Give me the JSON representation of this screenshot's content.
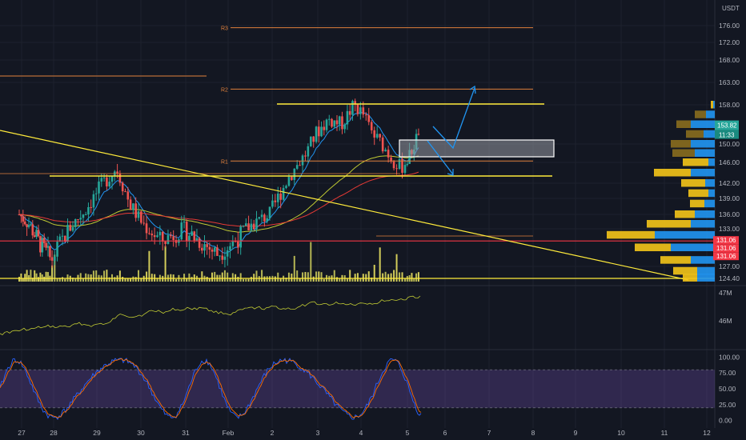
{
  "header": {
    "currency": "USDT"
  },
  "chart_data": [
    {
      "type": "candlestick",
      "title": "",
      "x_axis_labels": [
        "27",
        "28",
        "29",
        "30",
        "31",
        "Feb",
        "2",
        "3",
        "4",
        "5",
        "6",
        "7",
        "8",
        "9",
        "10",
        "11",
        "12"
      ],
      "y_ticks": [
        124.4,
        127.0,
        131.06,
        133.0,
        136.0,
        139.0,
        142.0,
        146.0,
        150.0,
        153.82,
        158.0,
        163.0,
        168.0,
        172.0,
        176.0
      ],
      "y_tick_labels": [
        "124.40",
        "127.00",
        "133.00",
        "136.00",
        "139.00",
        "142.00",
        "146.00",
        "150.00",
        "158.00",
        "163.00",
        "168.00",
        "172.00",
        "176.00"
      ],
      "ylim": [
        123.5,
        178
      ],
      "price_path": [
        {
          "t": 0,
          "p": 136
        },
        {
          "t": 0.3,
          "p": 134
        },
        {
          "t": 0.6,
          "p": 131
        },
        {
          "t": 1.0,
          "p": 128
        },
        {
          "t": 1.4,
          "p": 133
        },
        {
          "t": 1.8,
          "p": 137
        },
        {
          "t": 2.2,
          "p": 142
        },
        {
          "t": 2.5,
          "p": 145
        },
        {
          "t": 2.8,
          "p": 138
        },
        {
          "t": 3.1,
          "p": 134
        },
        {
          "t": 3.5,
          "p": 131
        },
        {
          "t": 4.0,
          "p": 133
        },
        {
          "t": 4.4,
          "p": 131
        },
        {
          "t": 4.8,
          "p": 129
        },
        {
          "t": 5.2,
          "p": 131
        },
        {
          "t": 5.6,
          "p": 134
        },
        {
          "t": 6.0,
          "p": 136
        },
        {
          "t": 6.4,
          "p": 143
        },
        {
          "t": 6.8,
          "p": 148
        },
        {
          "t": 7.0,
          "p": 152
        },
        {
          "t": 7.3,
          "p": 155
        },
        {
          "t": 7.6,
          "p": 154
        },
        {
          "t": 7.9,
          "p": 158
        },
        {
          "t": 8.1,
          "p": 156
        },
        {
          "t": 8.3,
          "p": 152
        },
        {
          "t": 8.5,
          "p": 150
        },
        {
          "t": 8.7,
          "p": 147
        },
        {
          "t": 8.9,
          "p": 145
        },
        {
          "t": 9.1,
          "p": 147
        },
        {
          "t": 9.3,
          "p": 151
        },
        {
          "t": 9.4,
          "p": 153.82
        }
      ],
      "current_price": "153.82",
      "countdown": "11:33",
      "red_line_label": "131.06",
      "red_level_labels": [
        "131.06",
        "131.06",
        "131.06"
      ],
      "pivot_levels": [
        {
          "label": "R3",
          "value": 175.5
        },
        {
          "label": "R2",
          "value": 161.5
        },
        {
          "label": "R1",
          "value": 146.3
        }
      ],
      "volume_profile": [
        {
          "price": 158,
          "buy": 3,
          "sell": 2
        },
        {
          "price": 156,
          "buy": 14,
          "sell": 11
        },
        {
          "price": 154,
          "buy": 18,
          "sell": 30
        },
        {
          "price": 152,
          "buy": 22,
          "sell": 14
        },
        {
          "price": 150,
          "buy": 25,
          "sell": 30
        },
        {
          "price": 148,
          "buy": 28,
          "sell": 25
        },
        {
          "price": 146,
          "buy": 32,
          "sell": 8
        },
        {
          "price": 144,
          "buy": 46,
          "sell": 30
        },
        {
          "price": 142,
          "buy": 30,
          "sell": 12
        },
        {
          "price": 140,
          "buy": 25,
          "sell": 8
        },
        {
          "price": 138,
          "buy": 18,
          "sell": 13
        },
        {
          "price": 136,
          "buy": 25,
          "sell": 25
        },
        {
          "price": 134,
          "buy": 55,
          "sell": 30
        },
        {
          "price": 132,
          "buy": 60,
          "sell": 75
        },
        {
          "price": 130,
          "buy": 45,
          "sell": 55
        },
        {
          "price": 128,
          "buy": 38,
          "sell": 30
        },
        {
          "price": 126,
          "buy": 30,
          "sell": 22
        },
        {
          "price": 124.5,
          "buy": 18,
          "sell": 22
        }
      ]
    },
    {
      "type": "line",
      "title": "",
      "y_tick_labels": [
        "47M",
        "46M"
      ]
    },
    {
      "type": "line",
      "title": "",
      "y_ticks": [
        0,
        25,
        50,
        75,
        100
      ],
      "y_tick_labels": [
        "0.00",
        "25.00",
        "50.00",
        "75.00",
        "100.00"
      ],
      "ylim": [
        -8,
        108
      ],
      "band": [
        20,
        80
      ]
    }
  ],
  "colors": {
    "background": "#131722",
    "up": "#26a69a",
    "down": "#ef5350",
    "trendline": "#ffeb3b",
    "pivot": "#e0803c",
    "red_level": "#f23645",
    "arrow": "#2196f3",
    "profile_buy": "#2196f3",
    "profile_sell": "#f5c518",
    "profile_sell_dim": "#8a6d1e",
    "stoch_k": "#2962ff",
    "stoch_d": "#ff6d00",
    "stoch_band": "#7e57c2",
    "ema_fast": "#2196f3",
    "ema_mid": "#c0ca33",
    "ema_slow": "#e53935"
  }
}
